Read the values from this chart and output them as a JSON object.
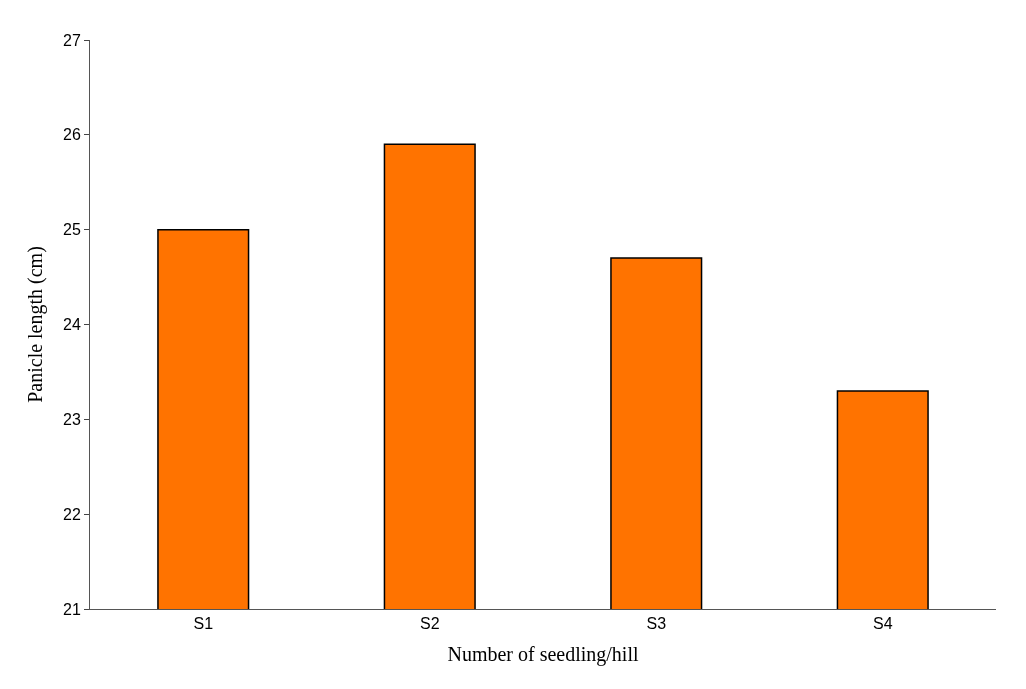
{
  "chart_data": {
    "type": "bar",
    "xlabel": "Number of seedling/hill",
    "ylabel": "Panicle length (cm)",
    "categories": [
      "S1",
      "S2",
      "S3",
      "S4"
    ],
    "values": [
      25.0,
      25.9,
      24.7,
      23.3
    ],
    "color": "#ff7300",
    "ylim": [
      21,
      27
    ],
    "yticks": [
      21,
      22,
      23,
      24,
      25,
      26,
      27
    ]
  }
}
